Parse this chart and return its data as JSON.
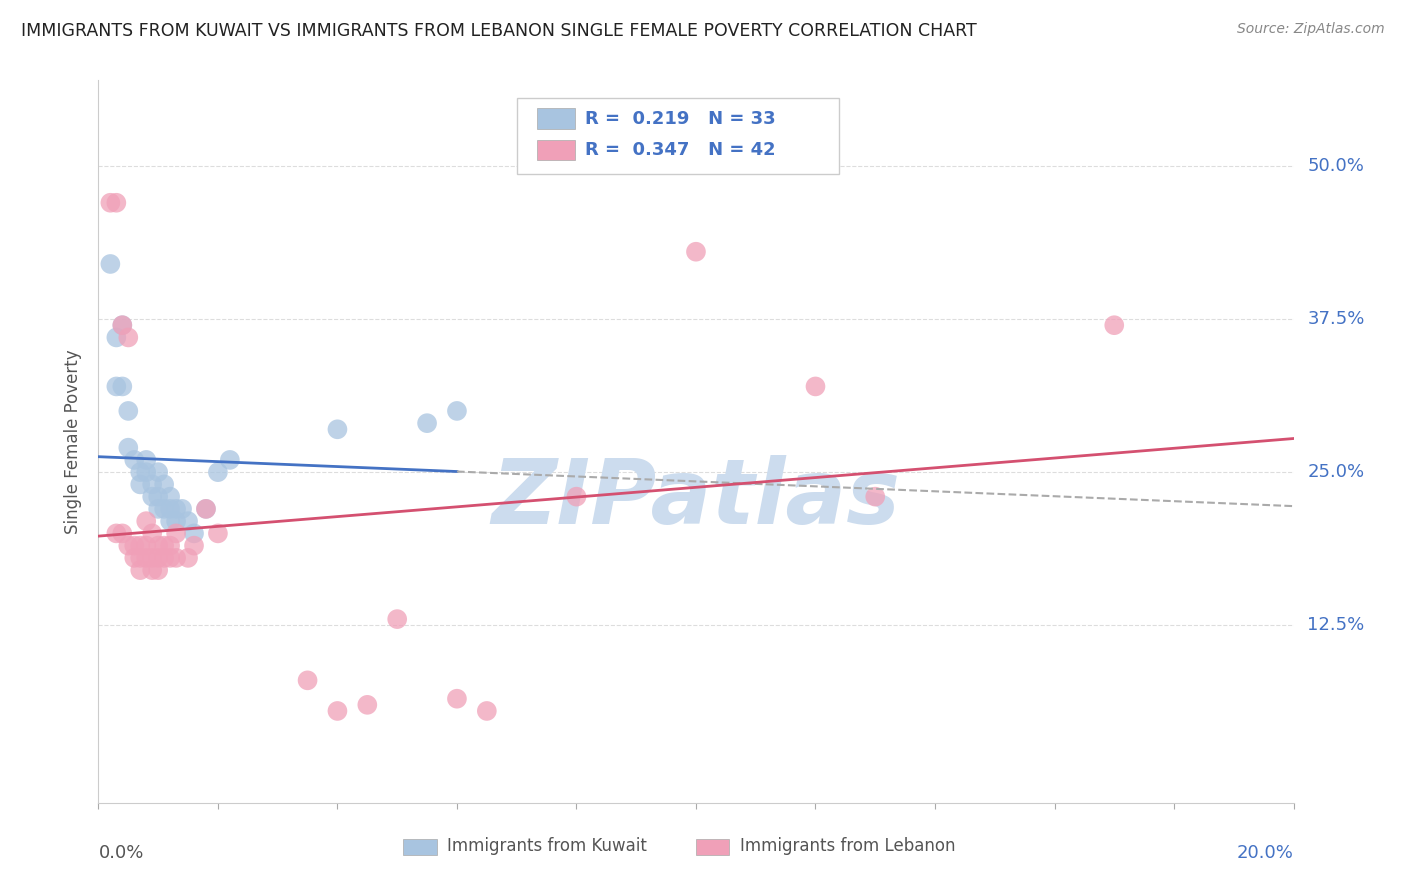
{
  "title": "IMMIGRANTS FROM KUWAIT VS IMMIGRANTS FROM LEBANON SINGLE FEMALE POVERTY CORRELATION CHART",
  "source": "Source: ZipAtlas.com",
  "xlabel_bottom_left": "0.0%",
  "xlabel_bottom_right": "20.0%",
  "ylabel": "Single Female Poverty",
  "y_ticks": [
    "12.5%",
    "25.0%",
    "37.5%",
    "50.0%"
  ],
  "y_tick_vals": [
    0.125,
    0.25,
    0.375,
    0.5
  ],
  "ylim": [
    -0.02,
    0.57
  ],
  "xlim": [
    0.0,
    0.2
  ],
  "kuwait_R": 0.219,
  "kuwait_N": 33,
  "lebanon_R": 0.347,
  "lebanon_N": 42,
  "kuwait_color": "#a8c4e0",
  "lebanon_color": "#f0a0b8",
  "kuwait_line_color": "#4472c4",
  "lebanon_line_color": "#d45070",
  "watermark": "ZIPatlas",
  "watermark_color": "#ccdcee",
  "kuwait_scatter": [
    [
      0.002,
      0.42
    ],
    [
      0.003,
      0.36
    ],
    [
      0.003,
      0.32
    ],
    [
      0.004,
      0.37
    ],
    [
      0.004,
      0.32
    ],
    [
      0.005,
      0.3
    ],
    [
      0.005,
      0.27
    ],
    [
      0.006,
      0.26
    ],
    [
      0.007,
      0.25
    ],
    [
      0.007,
      0.24
    ],
    [
      0.008,
      0.26
    ],
    [
      0.008,
      0.25
    ],
    [
      0.009,
      0.24
    ],
    [
      0.009,
      0.23
    ],
    [
      0.01,
      0.25
    ],
    [
      0.01,
      0.23
    ],
    [
      0.01,
      0.22
    ],
    [
      0.011,
      0.24
    ],
    [
      0.011,
      0.22
    ],
    [
      0.012,
      0.23
    ],
    [
      0.012,
      0.22
    ],
    [
      0.012,
      0.21
    ],
    [
      0.013,
      0.22
    ],
    [
      0.013,
      0.21
    ],
    [
      0.014,
      0.22
    ],
    [
      0.015,
      0.21
    ],
    [
      0.016,
      0.2
    ],
    [
      0.018,
      0.22
    ],
    [
      0.02,
      0.25
    ],
    [
      0.022,
      0.26
    ],
    [
      0.04,
      0.285
    ],
    [
      0.055,
      0.29
    ],
    [
      0.06,
      0.3
    ]
  ],
  "lebanon_scatter": [
    [
      0.002,
      0.47
    ],
    [
      0.003,
      0.47
    ],
    [
      0.003,
      0.2
    ],
    [
      0.004,
      0.37
    ],
    [
      0.004,
      0.2
    ],
    [
      0.005,
      0.36
    ],
    [
      0.005,
      0.19
    ],
    [
      0.006,
      0.19
    ],
    [
      0.006,
      0.18
    ],
    [
      0.007,
      0.19
    ],
    [
      0.007,
      0.18
    ],
    [
      0.007,
      0.17
    ],
    [
      0.008,
      0.21
    ],
    [
      0.008,
      0.19
    ],
    [
      0.008,
      0.18
    ],
    [
      0.009,
      0.2
    ],
    [
      0.009,
      0.18
    ],
    [
      0.009,
      0.17
    ],
    [
      0.01,
      0.19
    ],
    [
      0.01,
      0.18
    ],
    [
      0.01,
      0.17
    ],
    [
      0.011,
      0.19
    ],
    [
      0.011,
      0.18
    ],
    [
      0.012,
      0.19
    ],
    [
      0.012,
      0.18
    ],
    [
      0.013,
      0.2
    ],
    [
      0.013,
      0.18
    ],
    [
      0.015,
      0.18
    ],
    [
      0.016,
      0.19
    ],
    [
      0.018,
      0.22
    ],
    [
      0.02,
      0.2
    ],
    [
      0.035,
      0.08
    ],
    [
      0.04,
      0.055
    ],
    [
      0.045,
      0.06
    ],
    [
      0.05,
      0.13
    ],
    [
      0.06,
      0.065
    ],
    [
      0.065,
      0.055
    ],
    [
      0.08,
      0.23
    ],
    [
      0.1,
      0.43
    ],
    [
      0.12,
      0.32
    ],
    [
      0.13,
      0.23
    ],
    [
      0.17,
      0.37
    ]
  ]
}
